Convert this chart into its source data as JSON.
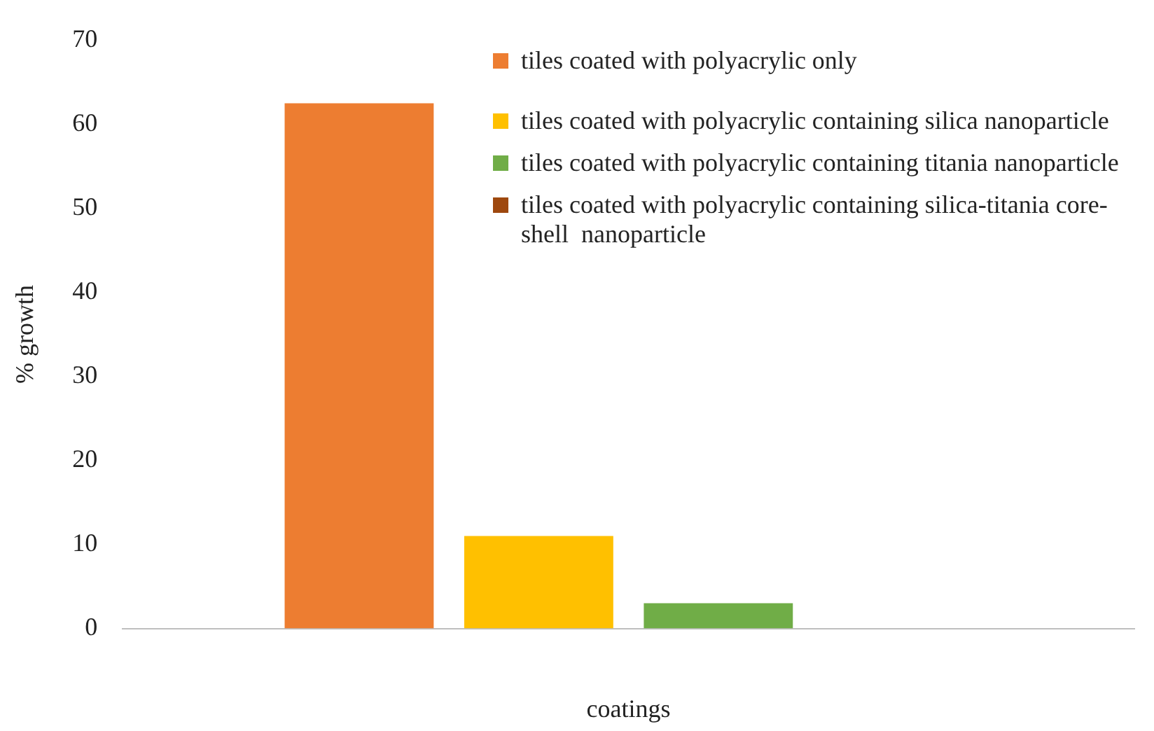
{
  "chart_data": {
    "type": "bar",
    "xlabel": "coatings",
    "ylabel": "% growth",
    "categories": [
      null
    ],
    "series": [
      {
        "name": "tiles coated with polyacrylic only",
        "color": "#ed7d31",
        "values": [
          62.5
        ]
      },
      {
        "name": "tiles coated with polyacrylic containing silica nanoparticle",
        "color": "#ffc000",
        "values": [
          11
        ]
      },
      {
        "name": "tiles coated with polyacrylic containing titania nanoparticle",
        "color": "#70ad47",
        "values": [
          3
        ]
      },
      {
        "name": "tiles coated with polyacrylic containing silica-titania core-shell  nanoparticle",
        "color": "#9e480e",
        "values": [
          0
        ]
      }
    ],
    "ylim": [
      0,
      70
    ],
    "yticks": [
      0,
      10,
      20,
      30,
      40,
      50,
      60,
      70
    ],
    "grid": false,
    "legend": "top right"
  }
}
